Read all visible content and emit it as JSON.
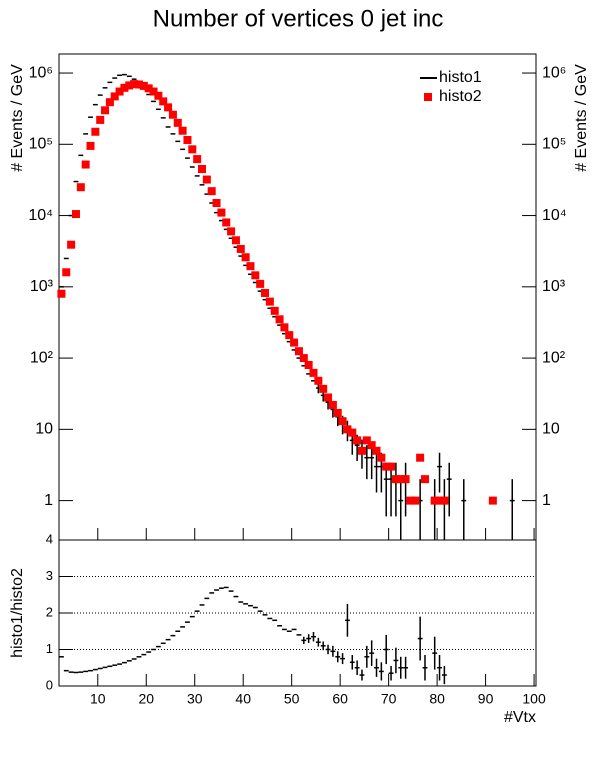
{
  "chart_data": [
    {
      "type": "scatter",
      "title": "Number of vertices 0 jet inc",
      "ylabel": "# Events / GeV",
      "log_y": true,
      "legend": "upper right",
      "x": [
        2.5,
        3.5,
        4.5,
        5.5,
        6.5,
        7.5,
        8.5,
        9.5,
        10.5,
        11.5,
        12.5,
        13.5,
        14.5,
        15.5,
        16.5,
        17.5,
        18.5,
        19.5,
        20.5,
        21.5,
        22.5,
        23.5,
        24.5,
        25.5,
        26.5,
        27.5,
        28.5,
        29.5,
        30.5,
        31.5,
        32.5,
        33.5,
        34.5,
        35.5,
        36.5,
        37.5,
        38.5,
        39.5,
        40.5,
        41.5,
        42.5,
        43.5,
        44.5,
        45.5,
        46.5,
        47.5,
        48.5,
        49.5,
        50.5,
        51.5,
        52.5,
        53.5,
        54.5,
        55.5,
        56.5,
        57.5,
        58.5,
        59.5,
        60.5,
        61.5,
        62.5,
        63.5,
        64.5,
        65.5,
        66.5,
        67.5,
        68.5,
        69.5,
        70.5,
        71.5,
        72.5,
        73.5,
        74.5,
        75.5,
        76.5,
        77.5,
        78.5,
        79.5,
        80.5,
        81.5,
        82.5,
        83.5,
        84.5,
        85.5,
        86.5,
        87.5,
        88.5,
        89.5,
        90.5,
        91.5,
        92.5,
        93.5,
        94.5,
        95.5
      ],
      "series": [
        {
          "name": "histo1",
          "color": "#000000",
          "marker": "dash",
          "values": [
            1000,
            2500,
            10000,
            30000,
            70000,
            140000,
            240000,
            360000,
            490000,
            620000,
            740000,
            850000,
            930000,
            950000,
            900000,
            820000,
            720000,
            610000,
            500000,
            400000,
            310000,
            235000,
            175000,
            140000,
            110000,
            85000,
            64000,
            48000,
            36000,
            27000,
            20000,
            15000,
            11000,
            8500,
            6400,
            4800,
            3600,
            2700,
            2000,
            1500,
            1150,
            870,
            660,
            500,
            380,
            290,
            220,
            170,
            130,
            100,
            78,
            60,
            48,
            38,
            30,
            24,
            19,
            15,
            12,
            10,
            7,
            6,
            5,
            4,
            4,
            3,
            3,
            2,
            2,
            2,
            1,
            2,
            null,
            null,
            1,
            null,
            null,
            1,
            3,
            1,
            2,
            null,
            null,
            1,
            null,
            null,
            null,
            null,
            null,
            null,
            null,
            null,
            null,
            1
          ],
          "errors": [
            null,
            null,
            null,
            null,
            null,
            null,
            null,
            null,
            null,
            null,
            null,
            null,
            null,
            null,
            null,
            null,
            null,
            null,
            null,
            null,
            null,
            null,
            null,
            null,
            null,
            null,
            null,
            null,
            null,
            null,
            null,
            null,
            null,
            null,
            null,
            null,
            null,
            null,
            null,
            null,
            null,
            null,
            null,
            null,
            null,
            null,
            null,
            null,
            null,
            null,
            null,
            null,
            null,
            6,
            5.5,
            5,
            4.4,
            3.9,
            3.5,
            3.2,
            2.6,
            2.4,
            2.2,
            2,
            2,
            1.7,
            1.7,
            1.4,
            1.4,
            1.4,
            1,
            1.4,
            null,
            null,
            1,
            null,
            null,
            1,
            1.7,
            1,
            1.4,
            null,
            null,
            1,
            null,
            null,
            null,
            null,
            null,
            null,
            null,
            null,
            null,
            1
          ]
        },
        {
          "name": "histo2",
          "color": "#ff0000",
          "marker": "square",
          "values": [
            800,
            1600,
            3900,
            10500,
            25000,
            52000,
            95000,
            150000,
            220000,
            300000,
            390000,
            470000,
            550000,
            620000,
            670000,
            700000,
            690000,
            660000,
            610000,
            550000,
            480000,
            400000,
            330000,
            260000,
            200000,
            155000,
            115000,
            85000,
            62000,
            45000,
            32000,
            22000,
            15000,
            11000,
            8000,
            6000,
            4500,
            3400,
            2600,
            1950,
            1450,
            1100,
            820,
            620,
            460,
            350,
            270,
            210,
            165,
            125,
            100,
            80,
            62,
            48,
            37,
            28,
            22,
            17,
            13,
            10,
            9,
            7,
            5,
            7,
            6,
            5,
            4,
            3,
            3,
            2,
            2,
            2,
            1,
            1,
            4,
            2,
            null,
            1,
            1,
            1,
            null,
            null,
            null,
            null,
            null,
            null,
            null,
            null,
            null,
            1,
            null,
            null,
            null,
            null
          ]
        }
      ],
      "xlim": [
        2,
        100.4
      ],
      "xticks": [
        10,
        20,
        30,
        40,
        50,
        60,
        70,
        80,
        90,
        100
      ],
      "ylim": [
        0.28,
        1850000
      ],
      "yticks": [
        1,
        10,
        {
          "value": 100,
          "label": "10²"
        },
        {
          "value": 1000,
          "label": "10³"
        },
        {
          "value": 10000,
          "label": "10⁴"
        },
        {
          "value": 100000,
          "label": "10⁵"
        },
        {
          "value": 1000000,
          "label": "10⁶"
        }
      ]
    },
    {
      "type": "errorbar",
      "xlabel": "#Vtx",
      "ylabel": "histo1/histo2",
      "color": "#000000",
      "grid": true,
      "x": [
        2.5,
        3.5,
        4.5,
        5.5,
        6.5,
        7.5,
        8.5,
        9.5,
        10.5,
        11.5,
        12.5,
        13.5,
        14.5,
        15.5,
        16.5,
        17.5,
        18.5,
        19.5,
        20.5,
        21.5,
        22.5,
        23.5,
        24.5,
        25.5,
        26.5,
        27.5,
        28.5,
        29.5,
        30.5,
        31.5,
        32.5,
        33.5,
        34.5,
        35.5,
        36.5,
        37.5,
        38.5,
        39.5,
        40.5,
        41.5,
        42.5,
        43.5,
        44.5,
        45.5,
        46.5,
        47.5,
        48.5,
        49.5,
        50.5,
        51.5,
        52.5,
        53.5,
        54.5,
        55.5,
        56.5,
        57.5,
        58.5,
        59.5,
        60.5,
        61.5,
        62.5,
        63.5,
        64.5,
        65.5,
        66.5,
        67.5,
        68.5,
        69.5,
        70.5,
        71.5,
        72.5,
        73.5,
        74.5,
        75.5,
        76.5,
        77.5,
        78.5,
        79.5,
        80.5,
        81.5,
        82.5,
        83.5,
        84.5,
        85.5,
        86.5,
        87.5,
        88.5,
        89.5,
        90.5,
        91.5,
        92.5,
        93.5,
        94.5,
        95.5
      ],
      "values": [
        0.8,
        0.42,
        0.38,
        0.37,
        0.38,
        0.4,
        0.42,
        0.45,
        0.48,
        0.51,
        0.54,
        0.57,
        0.6,
        0.64,
        0.69,
        0.74,
        0.8,
        0.86,
        0.93,
        1.0,
        1.08,
        1.17,
        1.27,
        1.38,
        1.5,
        1.62,
        1.75,
        1.9,
        2.05,
        2.22,
        2.4,
        2.55,
        2.63,
        2.68,
        2.7,
        2.6,
        2.45,
        2.3,
        2.25,
        2.2,
        2.15,
        2.05,
        1.95,
        1.85,
        1.8,
        1.65,
        1.55,
        1.5,
        1.55,
        1.4,
        1.25,
        1.3,
        1.35,
        1.2,
        1.1,
        1.0,
        0.95,
        0.8,
        0.75,
        1.8,
        0.65,
        0.5,
        0.3,
        0.8,
        0.9,
        0.5,
        0.4,
        1.0,
        0.35,
        0.7,
        0.5,
        0.5,
        null,
        null,
        1.3,
        0.5,
        null,
        0.9,
        0.5,
        0.3,
        null,
        null,
        null,
        null,
        null,
        null,
        null,
        null,
        null,
        null,
        null,
        null,
        null,
        null
      ],
      "errors": [
        null,
        null,
        null,
        null,
        null,
        null,
        null,
        null,
        null,
        null,
        null,
        null,
        null,
        null,
        null,
        null,
        null,
        null,
        null,
        null,
        null,
        null,
        null,
        null,
        null,
        null,
        null,
        null,
        null,
        null,
        null,
        null,
        null,
        null,
        null,
        null,
        null,
        null,
        null,
        null,
        null,
        null,
        null,
        null,
        null,
        null,
        null,
        null,
        null,
        null,
        0.1,
        0.12,
        0.13,
        0.12,
        0.12,
        0.13,
        0.15,
        0.15,
        0.15,
        0.45,
        0.2,
        0.2,
        0.15,
        0.3,
        0.35,
        0.25,
        0.25,
        0.4,
        0.2,
        0.35,
        0.3,
        0.3,
        null,
        null,
        0.6,
        0.35,
        null,
        0.45,
        0.35,
        0.25,
        null,
        null,
        null,
        null,
        null,
        null,
        null,
        null,
        null,
        null,
        null,
        null,
        null,
        null
      ],
      "xlim": [
        2,
        100.4
      ],
      "xticks": [
        10,
        20,
        30,
        40,
        50,
        60,
        70,
        80,
        90,
        100
      ],
      "ylim": [
        0,
        4
      ],
      "yticks": [
        0,
        1,
        2,
        3,
        4
      ]
    }
  ]
}
